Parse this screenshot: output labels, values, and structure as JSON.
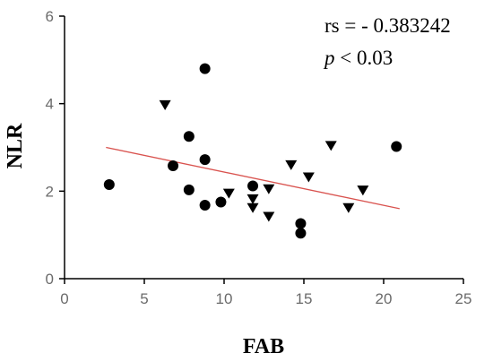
{
  "chart_data": {
    "type": "scatter",
    "xlabel": "FAB",
    "ylabel": "NLR",
    "xlim": [
      0,
      25
    ],
    "ylim": [
      0,
      6
    ],
    "xticks": [
      0,
      5,
      10,
      15,
      20,
      25
    ],
    "yticks": [
      0,
      2,
      4,
      6
    ],
    "grid": false,
    "series": [
      {
        "marker": "circle",
        "color": "#000000",
        "points": [
          {
            "x": 2.8,
            "y": 2.15
          },
          {
            "x": 6.8,
            "y": 2.58
          },
          {
            "x": 7.8,
            "y": 3.25
          },
          {
            "x": 7.8,
            "y": 2.03
          },
          {
            "x": 8.8,
            "y": 4.8
          },
          {
            "x": 8.8,
            "y": 2.72
          },
          {
            "x": 8.8,
            "y": 1.68
          },
          {
            "x": 9.8,
            "y": 1.75
          },
          {
            "x": 11.8,
            "y": 2.12
          },
          {
            "x": 14.8,
            "y": 1.26
          },
          {
            "x": 14.8,
            "y": 1.04
          },
          {
            "x": 20.8,
            "y": 3.02
          }
        ]
      },
      {
        "marker": "triangle-down",
        "color": "#000000",
        "points": [
          {
            "x": 6.3,
            "y": 3.97
          },
          {
            "x": 10.3,
            "y": 1.95
          },
          {
            "x": 11.8,
            "y": 1.82
          },
          {
            "x": 11.8,
            "y": 1.62
          },
          {
            "x": 12.8,
            "y": 2.05
          },
          {
            "x": 12.8,
            "y": 1.42
          },
          {
            "x": 14.2,
            "y": 2.6
          },
          {
            "x": 15.3,
            "y": 2.32
          },
          {
            "x": 16.7,
            "y": 3.04
          },
          {
            "x": 17.8,
            "y": 1.62
          },
          {
            "x": 18.7,
            "y": 2.02
          }
        ]
      }
    ],
    "trendline": {
      "color": "#d9534f",
      "x": [
        2.6,
        21
      ],
      "y": [
        3.0,
        1.6
      ]
    },
    "annotations": {
      "rs_text": "rs = - 0.383242",
      "p_symbol": "p",
      "p_text": " < 0.03"
    }
  }
}
